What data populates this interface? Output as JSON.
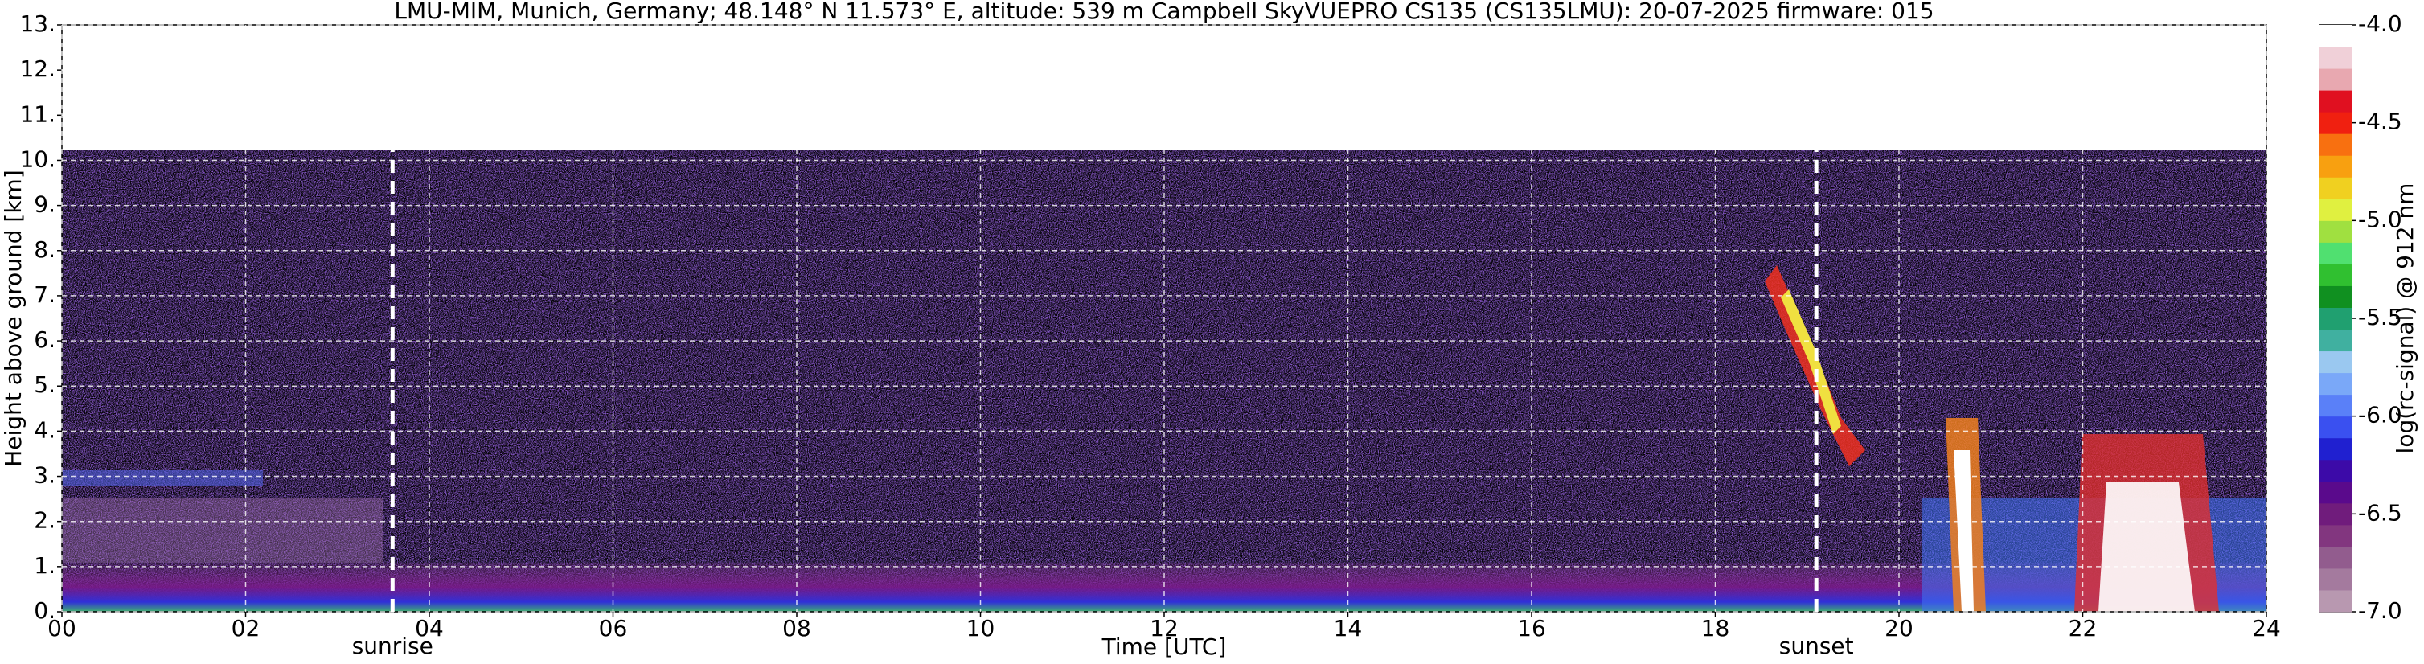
{
  "chart_data": {
    "type": "heatmap",
    "title": "LMU-MIM, Munich, Germany; 48.148° N 11.573° E, altitude: 539 m    Campbell SkyVUEPRO CS135 (CS135LMU): 20-07-2025    firmware: 015",
    "x_label": "Time [UTC]",
    "y_label": "Height above ground [km]",
    "xlim": [
      0,
      24
    ],
    "xticks": [
      {
        "value": 0,
        "label": "00"
      },
      {
        "value": 2,
        "label": "02"
      },
      {
        "value": 4,
        "label": "04"
      },
      {
        "value": 6,
        "label": "06"
      },
      {
        "value": 8,
        "label": "08"
      },
      10,
      12,
      14,
      16,
      18,
      20,
      22,
      24
    ],
    "ylim": [
      0,
      13
    ],
    "yticks": [
      {
        "value": 0,
        "label": "0."
      },
      {
        "value": 1,
        "label": "1."
      },
      {
        "value": 2,
        "label": "2."
      },
      {
        "value": 3,
        "label": "3."
      },
      {
        "value": 4,
        "label": "4."
      },
      {
        "value": 5,
        "label": "5."
      },
      {
        "value": 6,
        "label": "6."
      },
      {
        "value": 7,
        "label": "7."
      },
      {
        "value": 8,
        "label": "8."
      },
      {
        "value": 9,
        "label": "9."
      },
      {
        "value": 10,
        "label": "10."
      },
      {
        "value": 11,
        "label": "11."
      },
      {
        "value": 12,
        "label": "12."
      },
      {
        "value": 13,
        "label": "13."
      }
    ],
    "grid": true,
    "annotations": [
      {
        "text": "sunrise",
        "x": 3.6
      },
      {
        "text": "sunset",
        "x": 19.1
      }
    ],
    "colorbar": {
      "label": "log(rc-signal) @ 912 nm",
      "lim": [
        -7.0,
        -4.0
      ],
      "ticks": [
        {
          "value": -4.0,
          "label": "-4.0"
        },
        {
          "value": -4.5,
          "label": "-4.5"
        },
        {
          "value": -5.0,
          "label": "-5.0"
        },
        {
          "value": -5.5,
          "label": "-5.5"
        },
        {
          "value": -6.0,
          "label": "-6.0"
        },
        {
          "value": -6.5,
          "label": "-6.5"
        },
        {
          "value": -7.0,
          "label": "-7.0"
        }
      ],
      "colors": [
        "#b898b0",
        "#a47a9e",
        "#925c8e",
        "#82367f",
        "#701c7c",
        "#5a0a8c",
        "#3c0aa8",
        "#2020d0",
        "#3a50f0",
        "#5a80f8",
        "#7aa8f8",
        "#9ac8f0",
        "#40b0a0",
        "#20a070",
        "#109020",
        "#30c030",
        "#50e070",
        "#a0e040",
        "#e0f040",
        "#f0d020",
        "#f8a010",
        "#f87010",
        "#f02010",
        "#e01020",
        "#e8a8b0",
        "#f0d0d8",
        "#ffffff"
      ]
    }
  }
}
